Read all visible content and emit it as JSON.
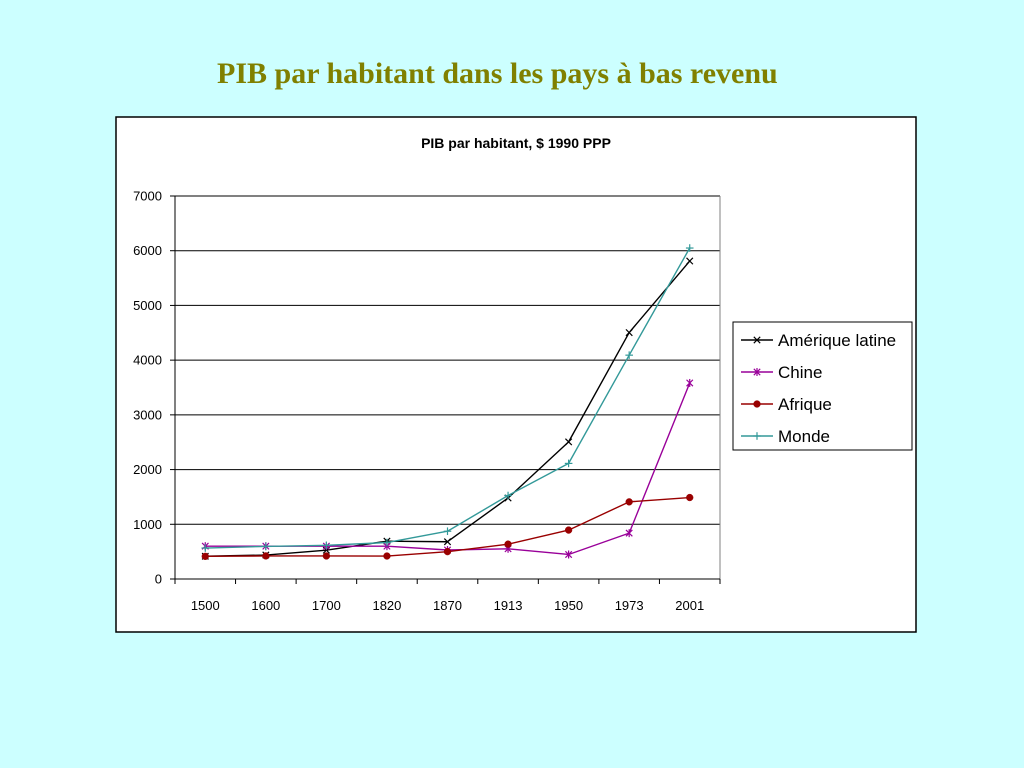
{
  "slide": {
    "title": "PIB par habitant dans les pays à bas revenu",
    "background_color": "#CCFFFF",
    "title_color": "#808000"
  },
  "chart_data": {
    "type": "line",
    "title": "PIB par habitant, $ 1990 PPP",
    "categories": [
      "1500",
      "1600",
      "1700",
      "1820",
      "1870",
      "1913",
      "1950",
      "1973",
      "2001"
    ],
    "ylim": [
      0,
      7000
    ],
    "ytick_labels": [
      "0",
      "1000",
      "2000",
      "3000",
      "4000",
      "5000",
      "6000",
      "7000"
    ],
    "grid": true,
    "legend": "right",
    "series": [
      {
        "name": "Amérique latine",
        "color": "#000000",
        "marker": "x",
        "values": [
          416,
          438,
          527,
          692,
          681,
          1481,
          2506,
          4504,
          5811
        ]
      },
      {
        "name": "Chine",
        "color": "#990099",
        "marker": "asterisk",
        "values": [
          600,
          600,
          600,
          600,
          530,
          552,
          448,
          838,
          3583
        ]
      },
      {
        "name": "Afrique",
        "color": "#990000",
        "marker": "circle",
        "values": [
          414,
          422,
          421,
          420,
          500,
          637,
          894,
          1410,
          1489
        ]
      },
      {
        "name": "Monde",
        "color": "#339999",
        "marker": "plus",
        "values": [
          566,
          596,
          616,
          667,
          873,
          1526,
          2113,
          4091,
          6049
        ]
      }
    ]
  }
}
